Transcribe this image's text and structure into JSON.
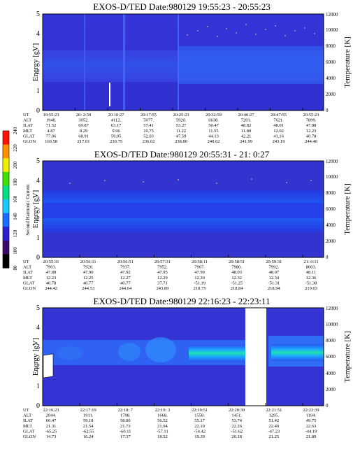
{
  "figure": {
    "colorbar": {
      "title": "Second Harmonic Current",
      "ticks": [
        "80",
        "100",
        "120",
        "140",
        "160",
        "180",
        "200",
        "220",
        "240"
      ],
      "colors": [
        "#000000",
        "#3a0a6e",
        "#2b1fd0",
        "#1a6cff",
        "#19c9ff",
        "#00e080",
        "#40e000",
        "#f0f000",
        "#ff9000",
        "#ff1000"
      ]
    }
  },
  "chart_data": [
    {
      "type": "heatmap",
      "title": "EXOS-D/TED   Date:980129  19:55:23 - 20:55:23",
      "ylabel": "Energy [eV]",
      "ylabel_right": "Temperature [K]",
      "ylim": [
        0,
        5
      ],
      "yticks": [
        "0",
        "1",
        "2",
        "3",
        "4",
        "5"
      ],
      "ylim_right": [
        0,
        12000
      ],
      "rticks": [
        "0",
        "2000",
        "4000",
        "6000",
        "8000",
        "10000",
        "12000"
      ],
      "ephemeris": {
        "labels": [
          "UT",
          "ALT",
          "ILAT",
          "MLT",
          "GLAT",
          "GLON"
        ],
        "columns": [
          [
            "19:55:23",
            "1948.",
            "71.52",
            "4.87",
            "77.06",
            "160.58"
          ],
          [
            "20: 2:59",
            "3052.",
            "69.87",
            "8.29",
            "68.91",
            "217.01"
          ],
          [
            "20:10:27",
            "4112.",
            "63.17",
            "9.96",
            "59.05",
            "230.75"
          ],
          [
            "20:17:55",
            "5077.",
            "57.41",
            "10.75",
            "52.03",
            "236.02"
          ],
          [
            "20:25:23",
            "5920.",
            "53.27",
            "11.22",
            "47.59",
            "238.80"
          ],
          [
            "20:32:59",
            "6638.",
            "50.47",
            "11.55",
            "44.13",
            "240.62"
          ],
          [
            "20:40:27",
            "7201.",
            "48.82",
            "11.80",
            "42.21",
            "241.99"
          ],
          [
            "20:47:55",
            "7621.",
            "48.01",
            "12.02",
            "41.16",
            "243.19"
          ],
          [
            "20:55:23",
            "7899.",
            "47.88",
            "12.23",
            "40.78",
            "244.40"
          ]
        ]
      }
    },
    {
      "type": "heatmap",
      "title": "EXOS-D/TED   Date:980129  20:55:31 - 21: 0:27",
      "ylabel": "Energy [eV]",
      "ylabel_right": "Temperature [K]",
      "ylim": [
        0,
        5
      ],
      "yticks": [
        "0",
        "1",
        "2",
        "3",
        "4",
        "5"
      ],
      "ylim_right": [
        0,
        12000
      ],
      "rticks": [
        "0",
        "2000",
        "4000",
        "6000",
        "8000",
        "10000",
        "12000"
      ],
      "ephemeris": {
        "labels": [
          "UT",
          "ALT",
          "ILAT",
          "MLT",
          "GLAT",
          "GLON"
        ],
        "columns": [
          [
            "20:55:31",
            "7903.",
            "47.88",
            "12.23",
            "40.78",
            "244.42"
          ],
          [
            "20:56:11",
            "7920.",
            "47.90",
            "12.25",
            "40.77",
            "244.53"
          ],
          [
            "20:56:51",
            "7937.",
            "47.92",
            "12.27",
            "40.77",
            "244.64"
          ],
          [
            "20:57:31",
            "7952.",
            "47.95",
            "12.29",
            "37.71",
            "243.89"
          ],
          [
            "20:58:11",
            "7967.",
            "47.99",
            "12.30",
            "-51.19",
            "218.75"
          ],
          [
            "20:58:51",
            "7980.",
            "48.03",
            "12.32",
            "-51.25",
            "218.84"
          ],
          [
            "20:59:31",
            "7992.",
            "48.07",
            "12.34",
            "-51.31",
            "218.94"
          ],
          [
            "21: 0:11",
            "8003.",
            "48.11",
            "12.36",
            "-51.38",
            "219.03"
          ]
        ]
      }
    },
    {
      "type": "heatmap",
      "title": "EXOS-D/TED   Date:980129  22:16:23 - 22:23:11",
      "ylabel": "Energy [eV]",
      "ylabel_right": "Temperature [K]",
      "ylim": [
        0,
        5
      ],
      "yticks": [
        "0",
        "1",
        "2",
        "3",
        "4",
        "5"
      ],
      "ylim_right": [
        0,
        12000
      ],
      "rticks": [
        "0",
        "2000",
        "4000",
        "6000",
        "8000",
        "10000",
        "12000"
      ],
      "ephemeris": {
        "labels": [
          "UT",
          "ALT",
          "ILAT",
          "MLT",
          "GLAT",
          "GLON"
        ],
        "columns": [
          [
            "22:16:23",
            "2044.",
            "60.47",
            "21.31",
            "-65.25",
            "14.73"
          ],
          [
            "22:17:19",
            "1911.",
            "59.18",
            "21.54",
            "-62.55",
            "16.24"
          ],
          [
            "22:18: 7",
            "1798.",
            "58.00",
            "21.73",
            "-60.11",
            "17.37"
          ],
          [
            "22:19: 3",
            "1668.",
            "56.52",
            "21.94",
            "-57.11",
            "18.52"
          ],
          [
            "22:19:51",
            "1558.",
            "55.17",
            "22.10",
            "-54.42",
            "19.39"
          ],
          [
            "22:20:39",
            "1451.",
            "53.74",
            "22.26",
            "-51.62",
            "20.18"
          ],
          [
            "22:21:51",
            "1295.",
            "51.42",
            "22.49",
            "-47.23",
            "21.25"
          ],
          [
            "22:22:39",
            "1194.",
            "49.75",
            "22.63",
            "-44.19",
            "21.89"
          ]
        ]
      }
    }
  ]
}
